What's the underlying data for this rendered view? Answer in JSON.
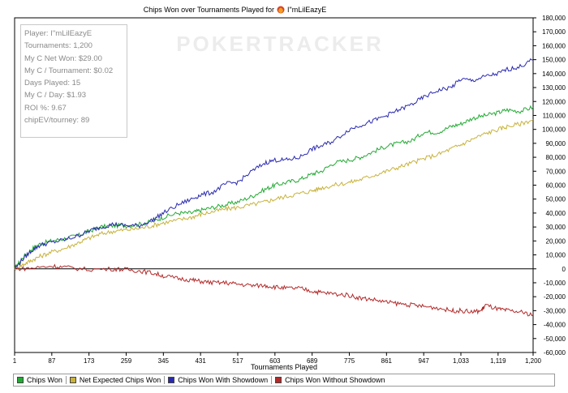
{
  "chart_data": {
    "type": "line",
    "title": "Chips Won over Tournaments Played for",
    "player_name": "I\"mLilEazyE",
    "xlabel": "Tournaments Played",
    "ylabel": "",
    "x_ticks": [
      "1",
      "87",
      "173",
      "259",
      "345",
      "431",
      "517",
      "603",
      "689",
      "775",
      "861",
      "947",
      "1,033",
      "1,119",
      "1,200"
    ],
    "x_range": [
      1,
      1200
    ],
    "y_ticks": [
      "180,000",
      "170,000",
      "160,000",
      "150,000",
      "140,000",
      "130,000",
      "120,000",
      "110,000",
      "100,000",
      "90,000",
      "80,000",
      "70,000",
      "60,000",
      "50,000",
      "40,000",
      "30,000",
      "20,000",
      "10,000",
      "0",
      "-10,000",
      "-20,000",
      "-30,000",
      "-40,000",
      "-50,000",
      "-60,000"
    ],
    "ylim": [
      -60000,
      180000
    ],
    "grid": false,
    "watermark": "POKERTRACKER",
    "series": [
      {
        "name": "Chips Won",
        "color": "#22aa33",
        "x": [
          1,
          20,
          40,
          60,
          87,
          120,
          150,
          173,
          200,
          230,
          259,
          290,
          320,
          345,
          380,
          410,
          431,
          460,
          490,
          517,
          550,
          580,
          603,
          630,
          660,
          689,
          710,
          740,
          775,
          800,
          830,
          861,
          890,
          920,
          947,
          980,
          1010,
          1033,
          1060,
          1090,
          1119,
          1140,
          1170,
          1200
        ],
        "y": [
          0,
          8000,
          14000,
          18000,
          20000,
          22000,
          24000,
          27000,
          30000,
          31000,
          31000,
          32000,
          34000,
          37000,
          40000,
          40000,
          42000,
          44000,
          46000,
          48000,
          52000,
          57000,
          60000,
          62000,
          64000,
          68000,
          70000,
          76000,
          78000,
          80000,
          84000,
          88000,
          90000,
          92000,
          98000,
          98000,
          102000,
          104000,
          108000,
          110000,
          112000,
          114000,
          113000,
          116000
        ]
      },
      {
        "name": "Net Expected Chips Won",
        "color": "#c8b23c",
        "x": [
          1,
          20,
          40,
          60,
          87,
          120,
          150,
          173,
          200,
          230,
          259,
          290,
          320,
          345,
          380,
          410,
          431,
          460,
          490,
          517,
          550,
          580,
          603,
          630,
          660,
          689,
          710,
          740,
          775,
          800,
          830,
          861,
          890,
          920,
          947,
          980,
          1010,
          1033,
          1060,
          1090,
          1119,
          1140,
          1170,
          1200
        ],
        "y": [
          0,
          3000,
          6000,
          9000,
          12000,
          15000,
          19000,
          22000,
          25000,
          27000,
          28000,
          29000,
          31000,
          33000,
          35000,
          37000,
          39000,
          41000,
          43000,
          44000,
          46000,
          48000,
          50000,
          52000,
          54000,
          56000,
          58000,
          60000,
          62000,
          64000,
          67000,
          70000,
          73000,
          76000,
          79000,
          82000,
          86000,
          89000,
          93000,
          97000,
          100000,
          102000,
          104000,
          107000
        ]
      },
      {
        "name": "Chips Won With Showdown",
        "color": "#2a2ab0",
        "x": [
          1,
          20,
          40,
          60,
          87,
          120,
          150,
          173,
          200,
          230,
          259,
          290,
          320,
          345,
          380,
          410,
          431,
          460,
          490,
          517,
          550,
          580,
          603,
          630,
          660,
          689,
          710,
          740,
          775,
          800,
          830,
          861,
          890,
          920,
          947,
          980,
          1010,
          1033,
          1060,
          1090,
          1119,
          1140,
          1170,
          1200
        ],
        "y": [
          0,
          7000,
          13000,
          17000,
          19000,
          21000,
          24000,
          27000,
          30000,
          32000,
          31000,
          31000,
          35000,
          40000,
          46000,
          50000,
          53000,
          55000,
          61000,
          62000,
          70000,
          76000,
          78000,
          78000,
          80000,
          86000,
          88000,
          92000,
          100000,
          103000,
          106000,
          110000,
          114000,
          118000,
          123000,
          128000,
          130000,
          136000,
          135000,
          138000,
          140000,
          143000,
          145000,
          150000
        ]
      },
      {
        "name": "Chips Won Without Showdown",
        "color": "#b22a2a",
        "x": [
          1,
          40,
          87,
          120,
          173,
          230,
          259,
          290,
          320,
          345,
          380,
          410,
          431,
          460,
          490,
          517,
          550,
          580,
          603,
          630,
          660,
          689,
          710,
          740,
          775,
          800,
          830,
          861,
          890,
          920,
          947,
          980,
          1010,
          1033,
          1060,
          1080,
          1090,
          1119,
          1140,
          1170,
          1200
        ],
        "y": [
          0,
          500,
          2000,
          1000,
          -500,
          0,
          -500,
          -1500,
          -3000,
          -5000,
          -7000,
          -8000,
          -9000,
          -10000,
          -10000,
          -11000,
          -12000,
          -12000,
          -13000,
          -14000,
          -14000,
          -16000,
          -17000,
          -18000,
          -19000,
          -21000,
          -22000,
          -24000,
          -25000,
          -26000,
          -27000,
          -28000,
          -30000,
          -30000,
          -31000,
          -30000,
          -26000,
          -29000,
          -30000,
          -31000,
          -33000
        ]
      }
    ]
  },
  "info_box": {
    "lines": [
      "Player: I\"mLilEazyE",
      "Tournaments: 1,200",
      "My C Net Won: $29.00",
      "My C / Tournament: $0.02",
      "Days Played: 15",
      "My C / Day: $1.93",
      "ROI %: 9.67",
      "chipEV/tourney: 89"
    ]
  },
  "legend": {
    "items": [
      "Chips Won",
      "Net Expected Chips Won",
      "Chips Won With Showdown",
      "Chips Won Without Showdown"
    ],
    "colors": [
      "#22aa33",
      "#c8b23c",
      "#2a2ab0",
      "#b22a2a"
    ]
  }
}
